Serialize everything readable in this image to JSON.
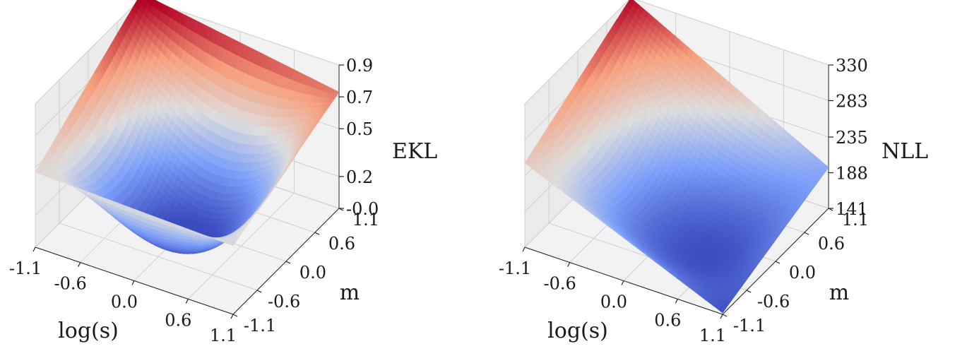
{
  "chart_data": [
    {
      "type": "surface3d",
      "colormap": "coolwarm",
      "xlabel": "log(s)",
      "ylabel": "m",
      "zlabel": "EKL",
      "x_ticks": [
        "-1.1",
        "-0.6",
        "0.0",
        "0.6",
        "1.1"
      ],
      "y_ticks": [
        "-1.1",
        "-0.6",
        "0.0",
        "0.6",
        "1.1"
      ],
      "z_ticks": [
        "-0.0",
        "0.2",
        "0.5",
        "0.7",
        "0.9"
      ],
      "xlim": [
        -1.1,
        1.1
      ],
      "ylim": [
        -1.1,
        1.1
      ],
      "zlim": [
        0.0,
        0.9
      ],
      "corner_values": {
        "x_min_y_min": 0.47,
        "x_max_y_min": 0.43,
        "x_min_y_max": 0.93,
        "x_max_y_max": 0.73
      },
      "minimum": {
        "x": 0.1,
        "y": -0.5,
        "z": 0.02
      }
    },
    {
      "type": "surface3d",
      "colormap": "coolwarm",
      "xlabel": "log(s)",
      "ylabel": "m",
      "zlabel": "NLL",
      "x_ticks": [
        "-1.1",
        "-0.6",
        "0.0",
        "0.6",
        "1.1"
      ],
      "y_ticks": [
        "-1.1",
        "-0.6",
        "0.0",
        "0.6",
        "1.1"
      ],
      "z_ticks": [
        "141",
        "188",
        "235",
        "283",
        "330"
      ],
      "xlim": [
        -1.1,
        1.1
      ],
      "ylim": [
        -1.1,
        1.1
      ],
      "zlim": [
        141,
        330
      ],
      "corner_values": {
        "x_min_y_min": 252,
        "x_max_y_min": 143,
        "x_min_y_max": 330,
        "x_max_y_max": 195
      },
      "minimum": {
        "x": 0.6,
        "y": -0.3,
        "z": 142
      }
    }
  ]
}
